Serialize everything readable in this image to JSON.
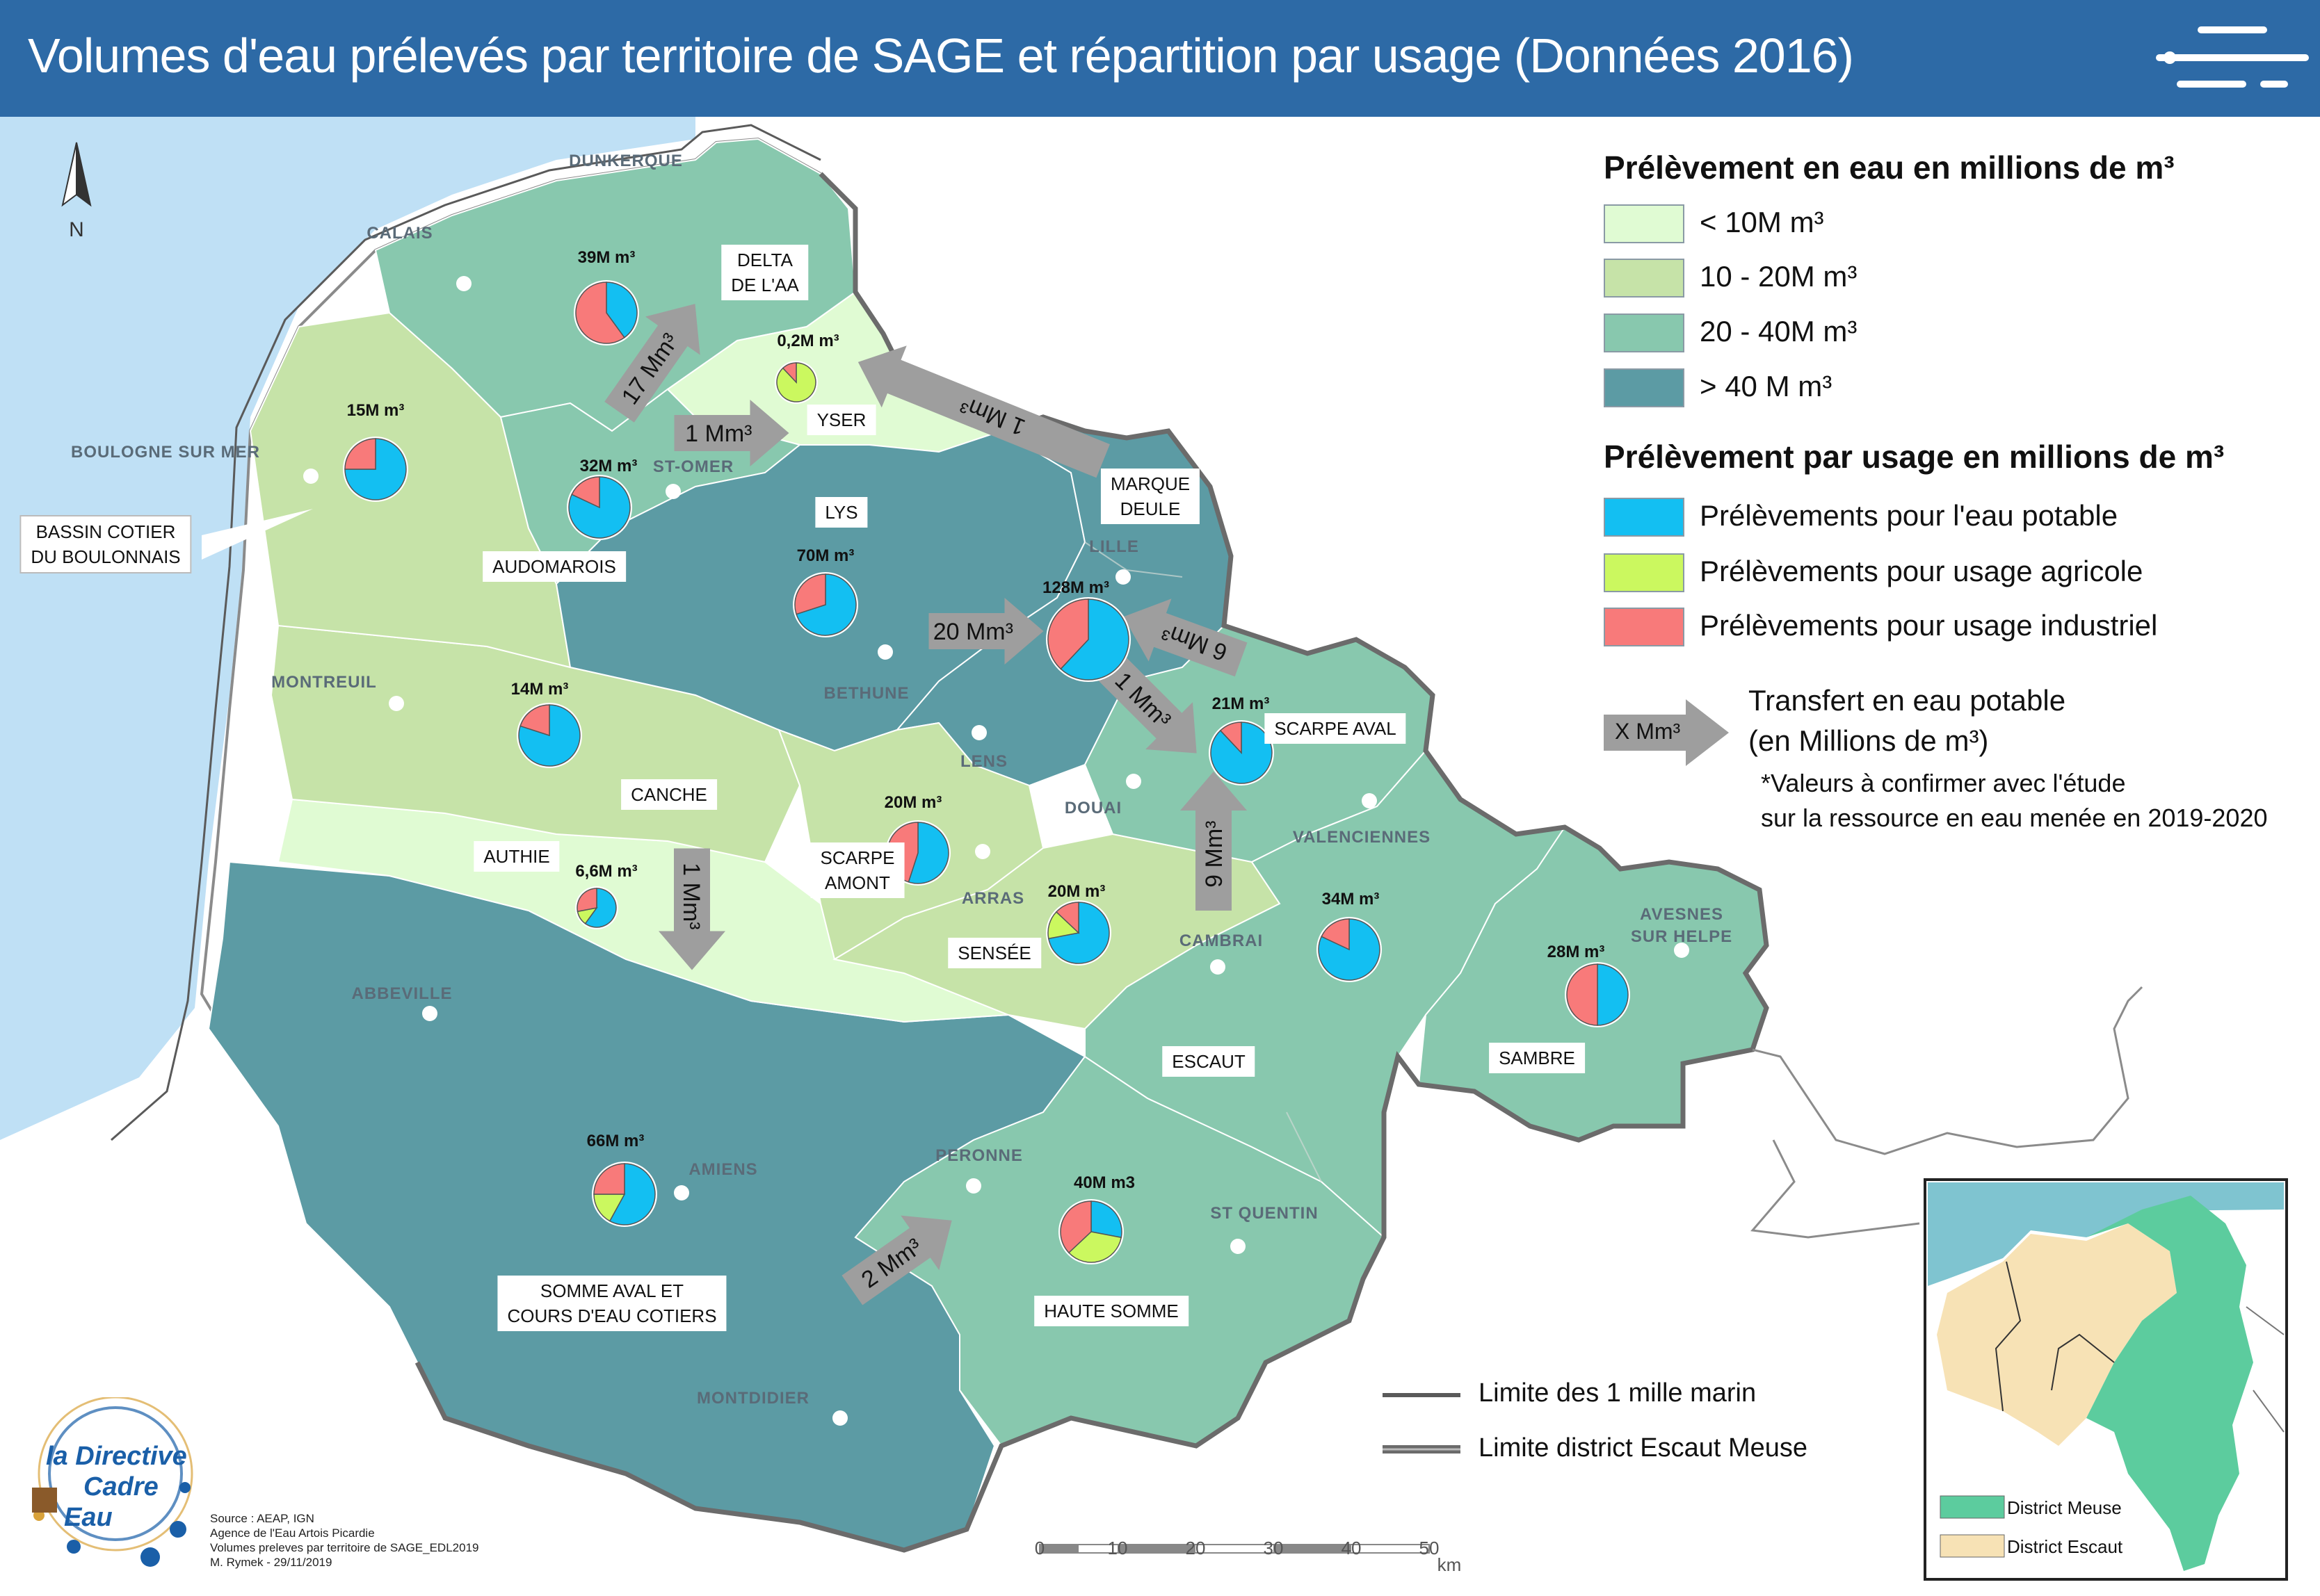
{
  "title": "Volumes d'eau prélevés par territoire de SAGE et répartition par usage (Données 2016)",
  "north_label": "N",
  "colors": {
    "sea": "#bfe0f5",
    "lt10": "#e0fbd3",
    "c10_20": "#c6e3a8",
    "c20_40": "#88c8ae",
    "gt40": "#5c9ba4",
    "potable": "#13bff2",
    "agricole": "#cbf85f",
    "industriel": "#f87a7a",
    "arrow": "#9e9e9e"
  },
  "cities": [
    {
      "id": "dunkerque",
      "label": "DUNKERQUE"
    },
    {
      "id": "calais",
      "label": "CALAIS"
    },
    {
      "id": "boulogne",
      "label": "BOULOGNE SUR MER"
    },
    {
      "id": "stomer",
      "label": "ST-OMER"
    },
    {
      "id": "lille",
      "label": "LILLE"
    },
    {
      "id": "montreuil",
      "label": "MONTREUIL"
    },
    {
      "id": "bethune",
      "label": "BETHUNE"
    },
    {
      "id": "lens",
      "label": "LENS"
    },
    {
      "id": "douai",
      "label": "DOUAI"
    },
    {
      "id": "valenciennes",
      "label": "VALENCIENNES"
    },
    {
      "id": "arras",
      "label": "ARRAS"
    },
    {
      "id": "cambrai",
      "label": "CAMBRAI"
    },
    {
      "id": "avesnes",
      "label": "AVESNES\nSUR HELPE"
    },
    {
      "id": "abbeville",
      "label": "ABBEVILLE"
    },
    {
      "id": "amiens",
      "label": "AMIENS"
    },
    {
      "id": "peronne",
      "label": "PERONNE"
    },
    {
      "id": "stquentin",
      "label": "ST QUENTIN"
    },
    {
      "id": "montdidier",
      "label": "MONTDIDIER"
    }
  ],
  "sages": [
    {
      "id": "delta",
      "label": "DELTA\nDE L'AA"
    },
    {
      "id": "yser",
      "label": "YSER"
    },
    {
      "id": "marque",
      "label": "MARQUE\nDEULE"
    },
    {
      "id": "lys",
      "label": "LYS"
    },
    {
      "id": "bassin",
      "label": "BASSIN COTIER\nDU BOULONNAIS"
    },
    {
      "id": "audomarois",
      "label": "AUDOMAROIS"
    },
    {
      "id": "scarpeaval",
      "label": "SCARPE AVAL"
    },
    {
      "id": "canche",
      "label": "CANCHE"
    },
    {
      "id": "authie",
      "label": "AUTHIE"
    },
    {
      "id": "scarpeamont",
      "label": "SCARPE\nAMONT"
    },
    {
      "id": "sensee",
      "label": "SENSÉE"
    },
    {
      "id": "escaut",
      "label": "ESCAUT"
    },
    {
      "id": "sambre",
      "label": "SAMBRE"
    },
    {
      "id": "somme",
      "label": "SOMME AVAL ET\nCOURS D'EAU COTIERS"
    },
    {
      "id": "hautesomme",
      "label": "HAUTE SOMME"
    }
  ],
  "volumes": [
    {
      "id": "delta",
      "label": "39M m³",
      "potable": 0.4,
      "agricole": 0.0,
      "industriel": 0.6
    },
    {
      "id": "yser",
      "label": "0,2M m³",
      "potable": 0.0,
      "agricole": 0.88,
      "industriel": 0.12
    },
    {
      "id": "boulonnais",
      "label": "15M m³",
      "potable": 0.75,
      "agricole": 0.0,
      "industriel": 0.25
    },
    {
      "id": "audomarois",
      "label": "32M m³",
      "potable": 0.82,
      "agricole": 0.0,
      "industriel": 0.18
    },
    {
      "id": "lys",
      "label": "70M m³",
      "potable": 0.7,
      "agricole": 0.0,
      "industriel": 0.3
    },
    {
      "id": "marque",
      "label": "128M m³",
      "potable": 0.62,
      "agricole": 0.0,
      "industriel": 0.38
    },
    {
      "id": "canche",
      "label": "14M m³",
      "potable": 0.8,
      "agricole": 0.0,
      "industriel": 0.2
    },
    {
      "id": "scarpeaval",
      "label": "21M m³",
      "potable": 0.88,
      "agricole": 0.0,
      "industriel": 0.12
    },
    {
      "id": "scarpeamont",
      "label": "20M m³",
      "potable": 0.55,
      "agricole": 0.0,
      "industriel": 0.45
    },
    {
      "id": "authie",
      "label": "6,6M m³",
      "potable": 0.6,
      "agricole": 0.12,
      "industriel": 0.28
    },
    {
      "id": "sensee",
      "label": "20M m³",
      "potable": 0.72,
      "agricole": 0.15,
      "industriel": 0.13
    },
    {
      "id": "escaut",
      "label": "34M m³",
      "potable": 0.82,
      "agricole": 0.0,
      "industriel": 0.18
    },
    {
      "id": "sambre",
      "label": "28M m³",
      "potable": 0.5,
      "agricole": 0.0,
      "industriel": 0.5
    },
    {
      "id": "somme",
      "label": "66M m³",
      "potable": 0.58,
      "agricole": 0.17,
      "industriel": 0.25
    },
    {
      "id": "hautesomme",
      "label": "40M m3",
      "potable": 0.28,
      "agricole": 0.35,
      "industriel": 0.37
    }
  ],
  "transfers": [
    {
      "id": "t17",
      "label": "17 Mm³"
    },
    {
      "id": "t1a",
      "label": "1 Mm³"
    },
    {
      "id": "t1b",
      "label": "1 Mm³"
    },
    {
      "id": "t20",
      "label": "20 Mm³"
    },
    {
      "id": "t6",
      "label": "6 Mm³"
    },
    {
      "id": "t1c",
      "label": "1 Mm³"
    },
    {
      "id": "t9",
      "label": "9 Mm³"
    },
    {
      "id": "t1d",
      "label": "1 Mm³"
    },
    {
      "id": "t2",
      "label": "2 Mm³"
    }
  ],
  "legend": {
    "prelevement_title": "Prélèvement en eau en millions de m³",
    "classes": [
      {
        "key": "lt10",
        "label": "< 10M m³"
      },
      {
        "key": "c10_20",
        "label": "10 - 20M m³"
      },
      {
        "key": "c20_40",
        "label": "20 - 40M m³"
      },
      {
        "key": "gt40",
        "label": "> 40 M m³"
      }
    ],
    "usage_title": "Prélèvement par usage en millions de m³",
    "usages": [
      {
        "key": "potable",
        "label": "Prélèvements pour l'eau potable"
      },
      {
        "key": "agricole",
        "label": "Prélèvements pour usage agricole"
      },
      {
        "key": "industriel",
        "label": "Prélèvements pour usage industriel"
      }
    ],
    "transfer_symbol": "X Mm³",
    "transfer_line1": "Transfert en eau potable",
    "transfer_line2": "(en Millions de m³)",
    "note_line1": "*Valeurs à confirmer avec l'étude",
    "note_line2": "sur la ressource en eau menée en 2019-2020",
    "mille_marin": "Limite des 1 mille marin",
    "district_limit": "Limite district Escaut Meuse"
  },
  "inset": {
    "meuse": "District Meuse",
    "escaut": "District Escaut"
  },
  "logo": {
    "line1": "la Directive",
    "line2": "Cadre",
    "line3": "Eau"
  },
  "source": [
    "Source : AEAP, IGN",
    "Agence de l'Eau Artois Picardie",
    "Volumes preleves par territoire de SAGE_EDL2019",
    "M. Rymek - 29/11/2019"
  ],
  "scale": {
    "ticks": [
      "0",
      "10",
      "20",
      "30",
      "40",
      "50"
    ],
    "unit": "km"
  }
}
